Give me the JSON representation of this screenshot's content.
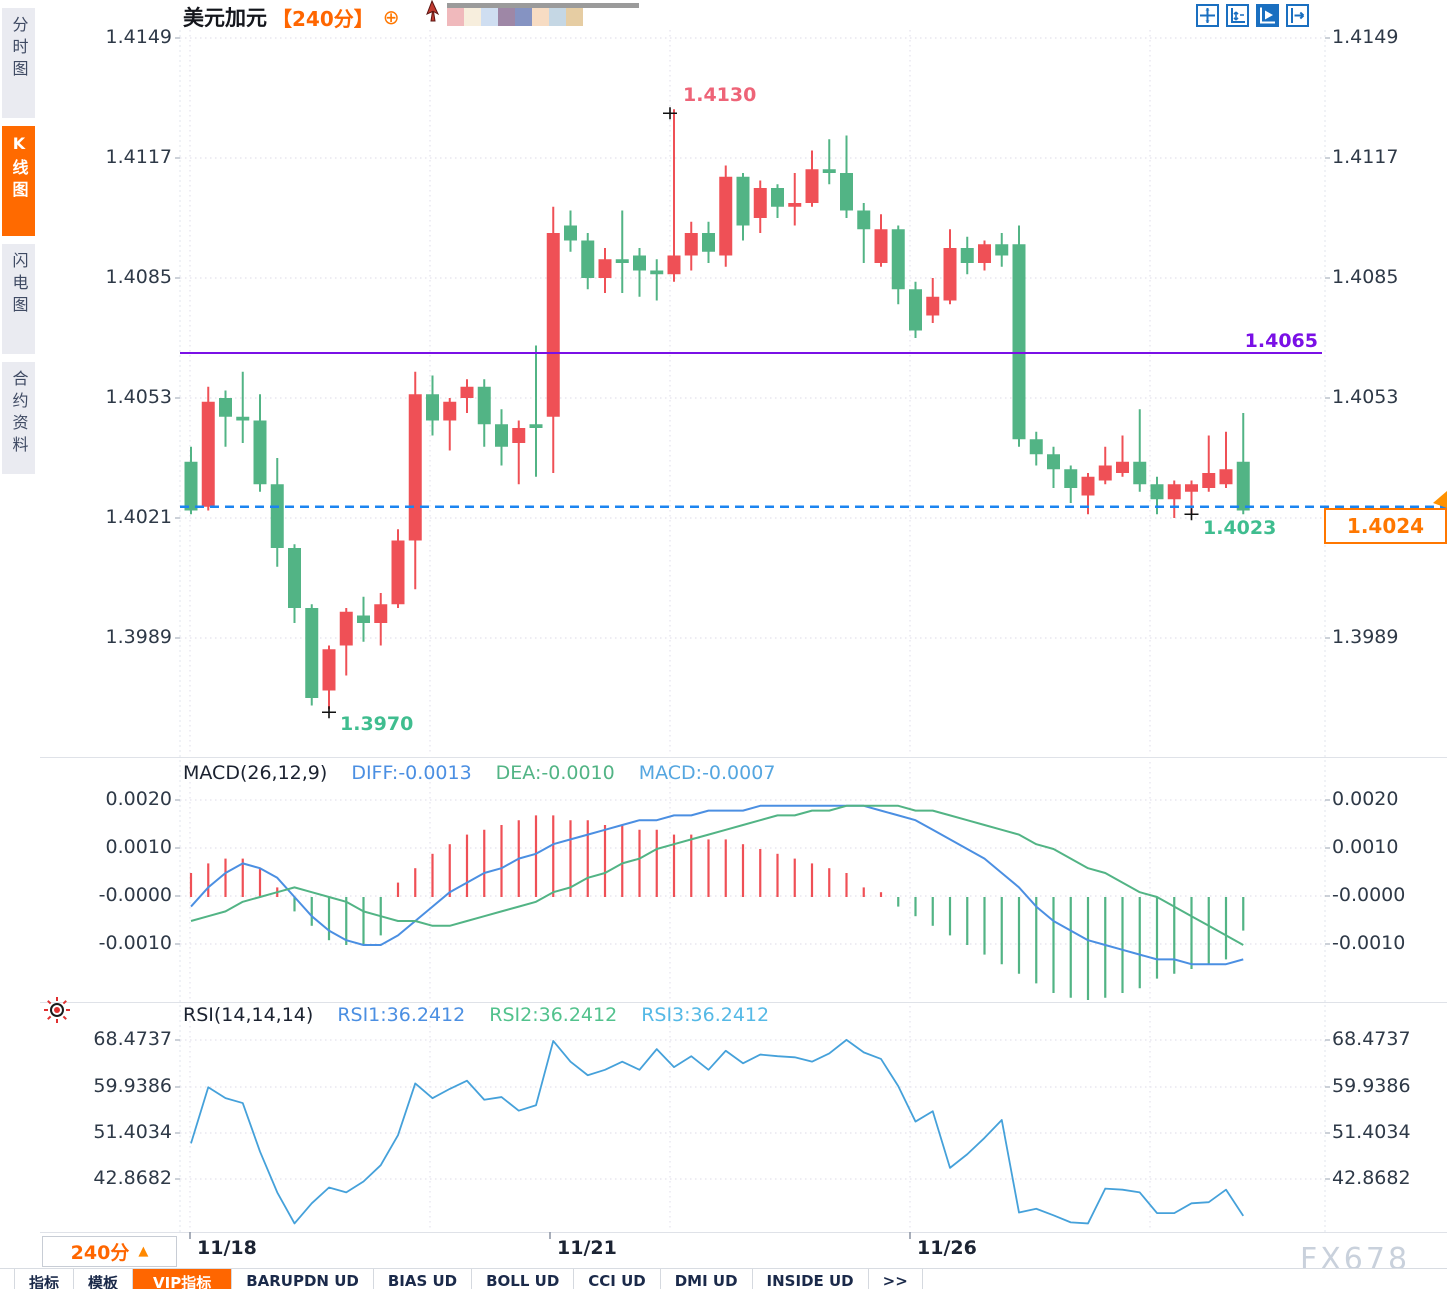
{
  "sidebar": {
    "tabs": [
      {
        "label": "分时图",
        "active": false
      },
      {
        "label": "K线图",
        "active": true
      },
      {
        "label": "闪电图",
        "active": false
      },
      {
        "label": "合约资料",
        "active": false
      }
    ]
  },
  "header": {
    "symbol": "美元加元",
    "period_tag": "【240分】",
    "link_icon": "⊕"
  },
  "toolbar": {
    "icons": [
      {
        "name": "pan-crosshair-icon",
        "active": false
      },
      {
        "name": "axis-range-icon",
        "active": false
      },
      {
        "name": "auto-scale-play-icon",
        "active": true
      },
      {
        "name": "shift-right-icon",
        "active": false
      }
    ]
  },
  "swatches": [
    "#f0b9bc",
    "#f7eedd",
    "#cfdef1",
    "#9e87a6",
    "#8593c2",
    "#f7dcc3",
    "#c5d7e4",
    "#e6cda3"
  ],
  "main_chart": {
    "y_axis_labels": [
      "1.4149",
      "1.4117",
      "1.4085",
      "1.4053",
      "1.4021",
      "1.3989"
    ],
    "annotations": {
      "high_label": "1.4130",
      "low_label": "1.3970",
      "hline_label": "1.4065",
      "last_label": "1.4023",
      "price_box": "1.4024"
    }
  },
  "macd_panel": {
    "title": "MACD(26,12,9)",
    "diff_label": "DIFF:-0.0013",
    "dea_label": "DEA:-0.0010",
    "macd_label": "MACD:-0.0007",
    "y_axis_labels": [
      "0.0020",
      "0.0010",
      "-0.0000",
      "-0.0010"
    ]
  },
  "rsi_panel": {
    "title": "RSI(14,14,14)",
    "rsi1_label": "RSI1:36.2412",
    "rsi2_label": "RSI2:36.2412",
    "rsi3_label": "RSI3:36.2412",
    "y_axis_labels": [
      "68.4737",
      "59.9386",
      "51.4034",
      "42.8682"
    ]
  },
  "x_axis_labels": [
    "11/18",
    "11/21",
    "11/26"
  ],
  "period_selector": {
    "label": "240分",
    "arrow": "▲"
  },
  "bottom_tabs": [
    {
      "label": "指标",
      "active": false
    },
    {
      "label": "模板",
      "active": false
    },
    {
      "label": "VIP指标",
      "active": true
    },
    {
      "label": "BARUPDN UD",
      "active": false
    },
    {
      "label": "BIAS UD",
      "active": false
    },
    {
      "label": "BOLL UD",
      "active": false
    },
    {
      "label": "CCI UD",
      "active": false
    },
    {
      "label": "DMI UD",
      "active": false
    },
    {
      "label": "INSIDE UD",
      "active": false
    },
    {
      "label": ">>",
      "active": false
    }
  ],
  "watermark": "FX678",
  "colors": {
    "up": "#ef5056",
    "down": "#52b485",
    "diff_line": "#4b8fe2",
    "dea_line": "#52b485",
    "macd_label_blue": "#55a6e0",
    "rsi_line": "#45a1da",
    "rsi2_green": "#52c28d",
    "rsi3_cyan": "#55b9e6",
    "hline": "#7a10e6",
    "last_price_line": "#1b84f0",
    "accent_orange": "#ff6600",
    "high_label": "#ee6478",
    "low_label": "#3fbd8f",
    "icon_blue": "#1a6fc0",
    "grid": "#e8e6ef",
    "separator": "#dfe2e8"
  },
  "chart_data": {
    "type": "candlestick+macd+rsi",
    "symbol": "美元加元",
    "period": "240分",
    "x_dates": [
      "11/18",
      "11/21",
      "11/26"
    ],
    "price_axis": [
      1.4149,
      1.4117,
      1.4085,
      1.4053,
      1.4021,
      1.3989
    ],
    "hline": 1.4065,
    "last_price_line": 1.4024,
    "high_marker": {
      "index": 28,
      "price": 1.413
    },
    "low_marker": {
      "index": 8,
      "price": 1.397
    },
    "recent_low_marker": {
      "index": 58,
      "price": 1.4022
    },
    "candles": [
      [
        1.4036,
        1.404,
        1.4022,
        1.4023
      ],
      [
        1.4024,
        1.4056,
        1.4023,
        1.4052
      ],
      [
        1.4053,
        1.4055,
        1.404,
        1.4048
      ],
      [
        1.4048,
        1.406,
        1.4041,
        1.4047
      ],
      [
        1.4047,
        1.4054,
        1.4028,
        1.403
      ],
      [
        1.403,
        1.4037,
        1.4008,
        1.4013
      ],
      [
        1.4013,
        1.4014,
        1.3993,
        1.3997
      ],
      [
        1.3997,
        1.3998,
        1.3971,
        1.3973
      ],
      [
        1.3975,
        1.3987,
        1.397,
        1.3986
      ],
      [
        1.3987,
        1.3997,
        1.3979,
        1.3996
      ],
      [
        1.3995,
        1.4,
        1.3988,
        1.3993
      ],
      [
        1.3993,
        1.4001,
        1.3987,
        1.3998
      ],
      [
        1.3998,
        1.4018,
        1.3997,
        1.4015
      ],
      [
        1.4015,
        1.406,
        1.4002,
        1.4054
      ],
      [
        1.4054,
        1.4059,
        1.4043,
        1.4047
      ],
      [
        1.4047,
        1.4053,
        1.4039,
        1.4052
      ],
      [
        1.4053,
        1.4058,
        1.4049,
        1.4056
      ],
      [
        1.4056,
        1.4058,
        1.404,
        1.4046
      ],
      [
        1.4046,
        1.405,
        1.4035,
        1.404
      ],
      [
        1.4041,
        1.4047,
        1.403,
        1.4045
      ],
      [
        1.4046,
        1.4067,
        1.4032,
        1.4045
      ],
      [
        1.4048,
        1.4104,
        1.4033,
        1.4097
      ],
      [
        1.4099,
        1.4103,
        1.4092,
        1.4095
      ],
      [
        1.4095,
        1.4097,
        1.4082,
        1.4085
      ],
      [
        1.4085,
        1.4093,
        1.4081,
        1.409
      ],
      [
        1.409,
        1.4103,
        1.4081,
        1.4089
      ],
      [
        1.4091,
        1.4093,
        1.408,
        1.4087
      ],
      [
        1.4087,
        1.409,
        1.4079,
        1.4086
      ],
      [
        1.4086,
        1.413,
        1.4084,
        1.4091
      ],
      [
        1.4091,
        1.41,
        1.4087,
        1.4097
      ],
      [
        1.4097,
        1.41,
        1.4089,
        1.4092
      ],
      [
        1.4091,
        1.4115,
        1.4088,
        1.4112
      ],
      [
        1.4112,
        1.4113,
        1.4095,
        1.4099
      ],
      [
        1.4101,
        1.4111,
        1.4097,
        1.4109
      ],
      [
        1.4109,
        1.411,
        1.4101,
        1.4104
      ],
      [
        1.4104,
        1.4113,
        1.4099,
        1.4105
      ],
      [
        1.4105,
        1.4119,
        1.4104,
        1.4114
      ],
      [
        1.4114,
        1.4122,
        1.411,
        1.4113
      ],
      [
        1.4113,
        1.4123,
        1.4101,
        1.4103
      ],
      [
        1.4103,
        1.4105,
        1.4089,
        1.4098
      ],
      [
        1.4089,
        1.4102,
        1.4088,
        1.4098
      ],
      [
        1.4098,
        1.4099,
        1.4078,
        1.4082
      ],
      [
        1.4082,
        1.4084,
        1.4069,
        1.4071
      ],
      [
        1.4075,
        1.4085,
        1.4073,
        1.408
      ],
      [
        1.4079,
        1.4098,
        1.4078,
        1.4093
      ],
      [
        1.4093,
        1.4096,
        1.4086,
        1.4089
      ],
      [
        1.4089,
        1.4095,
        1.4087,
        1.4094
      ],
      [
        1.4094,
        1.4097,
        1.4088,
        1.4091
      ],
      [
        1.4094,
        1.4099,
        1.404,
        1.4042
      ],
      [
        1.4042,
        1.4044,
        1.4035,
        1.4038
      ],
      [
        1.4038,
        1.404,
        1.4029,
        1.4034
      ],
      [
        1.4034,
        1.4035,
        1.4025,
        1.4029
      ],
      [
        1.4027,
        1.4033,
        1.4022,
        1.4032
      ],
      [
        1.4031,
        1.404,
        1.403,
        1.4035
      ],
      [
        1.4033,
        1.4043,
        1.4032,
        1.4036
      ],
      [
        1.4036,
        1.405,
        1.4028,
        1.403
      ],
      [
        1.403,
        1.4032,
        1.4022,
        1.4026
      ],
      [
        1.4026,
        1.4031,
        1.4021,
        1.403
      ],
      [
        1.4028,
        1.4031,
        1.4022,
        1.403
      ],
      [
        1.4029,
        1.4043,
        1.4028,
        1.4033
      ],
      [
        1.403,
        1.4044,
        1.4029,
        1.4034
      ],
      [
        1.4036,
        1.4049,
        1.4022,
        1.4023
      ]
    ],
    "macd": {
      "params": "26,12,9",
      "diff": -0.0013,
      "dea": -0.001,
      "macd": -0.0007,
      "axis": [
        0.002,
        0.001,
        -0.0,
        -0.001
      ],
      "hist": [
        0.0005,
        0.0007,
        0.0008,
        0.0008,
        0.0006,
        0.0002,
        -0.0003,
        -0.0006,
        -0.0009,
        -0.001,
        -0.001,
        -0.0008,
        0.0003,
        0.0006,
        0.0009,
        0.0011,
        0.0013,
        0.0014,
        0.0015,
        0.0016,
        0.0017,
        0.0017,
        0.0016,
        0.0016,
        0.0015,
        0.0015,
        0.0014,
        0.0014,
        0.0013,
        0.0013,
        0.0012,
        0.0012,
        0.0011,
        0.001,
        0.0009,
        0.0008,
        0.0007,
        0.0006,
        0.0005,
        0.0002,
        0.0001,
        -0.0002,
        -0.0004,
        -0.0006,
        -0.0008,
        -0.001,
        -0.0012,
        -0.0014,
        -0.0016,
        -0.0018,
        -0.002,
        -0.0021,
        -0.0022,
        -0.0021,
        -0.002,
        -0.0019,
        -0.0017,
        -0.0016,
        -0.0015,
        -0.0014,
        -0.0013,
        -0.0007
      ],
      "diff_series": [
        -0.0002,
        0.0002,
        0.0005,
        0.0007,
        0.0006,
        0.0004,
        0.0,
        -0.0004,
        -0.0007,
        -0.0009,
        -0.001,
        -0.001,
        -0.0008,
        -0.0005,
        -0.0002,
        0.0001,
        0.0003,
        0.0005,
        0.0006,
        0.0008,
        0.0009,
        0.0011,
        0.0012,
        0.0013,
        0.0014,
        0.0015,
        0.0016,
        0.0016,
        0.0017,
        0.0017,
        0.0018,
        0.0018,
        0.0018,
        0.0019,
        0.0019,
        0.0019,
        0.0019,
        0.0019,
        0.0019,
        0.0019,
        0.0018,
        0.0017,
        0.0016,
        0.0014,
        0.0012,
        0.001,
        0.0008,
        0.0005,
        0.0002,
        -0.0002,
        -0.0005,
        -0.0007,
        -0.0009,
        -0.001,
        -0.0011,
        -0.0012,
        -0.0013,
        -0.0013,
        -0.0014,
        -0.0014,
        -0.0014,
        -0.0013
      ],
      "dea_series": [
        -0.0005,
        -0.0004,
        -0.0003,
        -0.0001,
        0.0,
        0.0001,
        0.0002,
        0.0001,
        0.0,
        -0.0001,
        -0.0003,
        -0.0004,
        -0.0005,
        -0.0005,
        -0.0006,
        -0.0006,
        -0.0005,
        -0.0004,
        -0.0003,
        -0.0002,
        -0.0001,
        0.0001,
        0.0002,
        0.0004,
        0.0005,
        0.0007,
        0.0008,
        0.001,
        0.0011,
        0.0012,
        0.0013,
        0.0014,
        0.0015,
        0.0016,
        0.0017,
        0.0017,
        0.0018,
        0.0018,
        0.0019,
        0.0019,
        0.0019,
        0.0019,
        0.0018,
        0.0018,
        0.0017,
        0.0016,
        0.0015,
        0.0014,
        0.0013,
        0.0011,
        0.001,
        0.0008,
        0.0006,
        0.0005,
        0.0003,
        0.0001,
        0.0,
        -0.0002,
        -0.0004,
        -0.0006,
        -0.0008,
        -0.001
      ]
    },
    "rsi": {
      "params": "14,14,14",
      "rsi1": 36.2412,
      "rsi2": 36.2412,
      "rsi3": 36.2412,
      "axis": [
        68.4737,
        59.9386,
        51.4034,
        42.8682
      ],
      "values": [
        49.5,
        59.8,
        57.8,
        56.9,
        48.0,
        40.5,
        34.8,
        38.5,
        41.4,
        40.5,
        42.5,
        45.5,
        51.0,
        60.5,
        57.8,
        59.5,
        61.0,
        57.5,
        58.0,
        55.5,
        56.5,
        68.3,
        64.5,
        62.0,
        63.0,
        64.5,
        63.0,
        66.8,
        63.5,
        65.5,
        63.0,
        66.5,
        64.2,
        65.8,
        65.5,
        65.3,
        64.5,
        66.0,
        68.5,
        66.2,
        65.0,
        60.0,
        53.5,
        55.4,
        45.0,
        47.5,
        50.5,
        53.8,
        36.8,
        37.5,
        36.3,
        35.0,
        34.8,
        41.2,
        41.0,
        40.5,
        36.7,
        36.7,
        38.5,
        38.7,
        41.0,
        36.2
      ]
    }
  }
}
